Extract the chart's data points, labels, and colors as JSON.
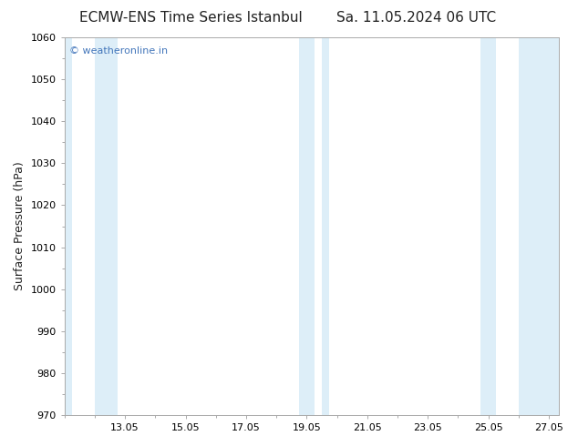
{
  "title_left": "ECMW-ENS Time Series Istanbul",
  "title_right": "Sa. 11.05.2024 06 UTC",
  "ylabel": "Surface Pressure (hPa)",
  "ylim": [
    970,
    1060
  ],
  "yticks": [
    970,
    980,
    990,
    1000,
    1010,
    1020,
    1030,
    1040,
    1050,
    1060
  ],
  "xlim_start": 11.0,
  "xlim_end": 27.333,
  "xtick_positions": [
    13.0,
    15.0,
    17.0,
    19.0,
    21.0,
    23.0,
    25.0,
    27.0
  ],
  "xtick_labels": [
    "13.05",
    "15.05",
    "17.05",
    "19.05",
    "21.05",
    "23.05",
    "25.05",
    "27.05"
  ],
  "band_color": "#ddeef8",
  "bg_color": "#ffffff",
  "plot_bg_color": "#ffffff",
  "band_ranges": [
    [
      11.0,
      11.25
    ],
    [
      12.0,
      12.75
    ],
    [
      18.75,
      19.25
    ],
    [
      19.5,
      19.75
    ],
    [
      24.75,
      25.25
    ],
    [
      26.0,
      27.333
    ]
  ],
  "watermark_text": "© weatheronline.in",
  "watermark_color": "#4477bb",
  "title_color": "#222222",
  "title_fontsize": 11,
  "tick_fontsize": 8,
  "ylabel_fontsize": 9
}
